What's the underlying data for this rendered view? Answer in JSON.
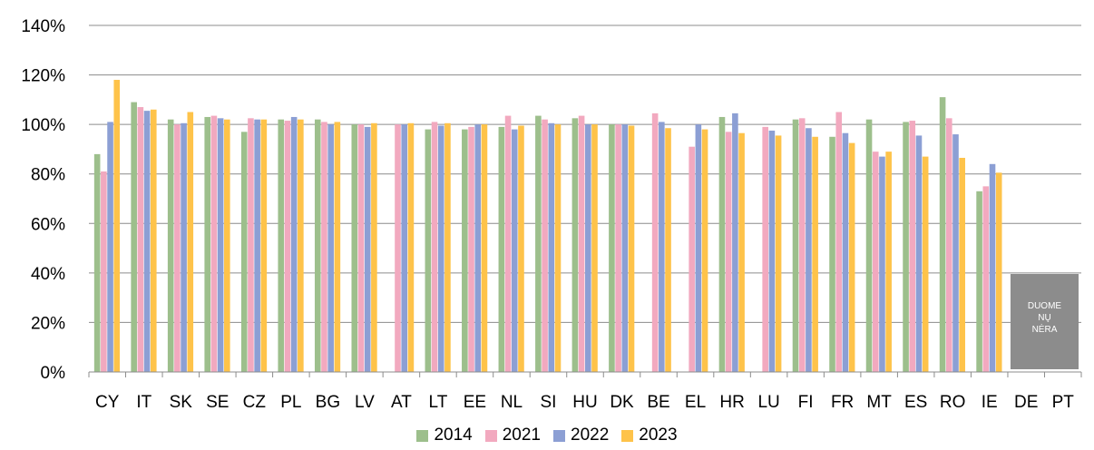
{
  "chart_data": {
    "type": "bar",
    "categories": [
      "CY",
      "IT",
      "SK",
      "SE",
      "CZ",
      "PL",
      "BG",
      "LV",
      "AT",
      "LT",
      "EE",
      "NL",
      "SI",
      "HU",
      "DK",
      "BE",
      "EL",
      "HR",
      "LU",
      "FI",
      "FR",
      "MT",
      "ES",
      "RO",
      "IE",
      "DE",
      "PT"
    ],
    "series": [
      {
        "name": "2014",
        "color": "#9dbf8c",
        "values": [
          88,
          109,
          102,
          103,
          97,
          102,
          102,
          100,
          null,
          98,
          98,
          99,
          103.5,
          102.5,
          100,
          null,
          null,
          103,
          null,
          102,
          95,
          102,
          101,
          111,
          73,
          null,
          null
        ]
      },
      {
        "name": "2021",
        "color": "#f2a9bf",
        "values": [
          81,
          107,
          100,
          103.5,
          102.5,
          101.5,
          101,
          100,
          100,
          101,
          99,
          103.5,
          102,
          103.5,
          100,
          104.5,
          91,
          97,
          99,
          102.5,
          105,
          89,
          101.5,
          102.5,
          75,
          null,
          null
        ]
      },
      {
        "name": "2022",
        "color": "#8c9fd4",
        "values": [
          101,
          105.5,
          100.5,
          102.5,
          102,
          103,
          100,
          99,
          100,
          99.5,
          100,
          98,
          100.5,
          100,
          100,
          101,
          100,
          104.5,
          97.5,
          98.5,
          96.5,
          87,
          95.5,
          96,
          84,
          null,
          null
        ]
      },
      {
        "name": "2023",
        "color": "#fec34a",
        "values": [
          118,
          106,
          105,
          102,
          102,
          102,
          101,
          100.5,
          100.5,
          100.5,
          100,
          99.5,
          100,
          100,
          99.5,
          98.5,
          98,
          96.5,
          95.5,
          95,
          92.5,
          89,
          87,
          86.5,
          80.5,
          null,
          null
        ]
      }
    ],
    "ylim": [
      0,
      140
    ],
    "yticks": [
      0,
      20,
      40,
      60,
      80,
      100,
      120,
      140
    ],
    "ytick_labels": [
      "0%",
      "20%",
      "40%",
      "60%",
      "80%",
      "100%",
      "120%",
      "140%"
    ],
    "grid": true,
    "legend_position": "bottom",
    "annotation": {
      "category": "DE",
      "lines": [
        "DUOME",
        "NŲ",
        "NĖRA"
      ],
      "fill": "#8c8c8c"
    }
  }
}
